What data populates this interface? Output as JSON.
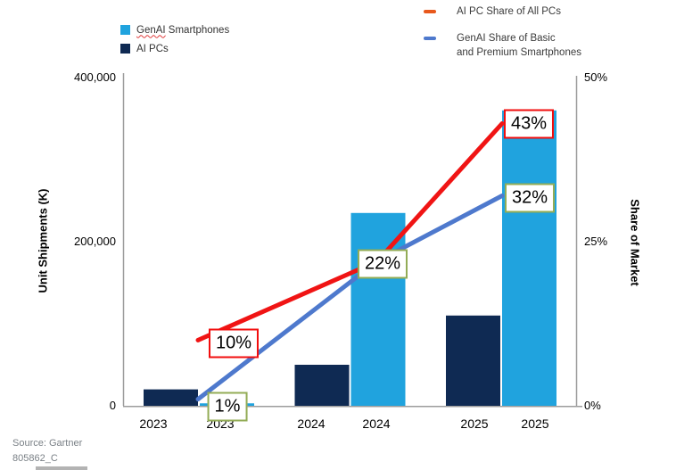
{
  "legend_left": {
    "items": [
      {
        "label": "GenAI Smartphones",
        "label_word1": "GenAI",
        "label_rest": " Smartphones",
        "color": "#20A3DE"
      },
      {
        "label": "AI PCs",
        "color": "#0F2A53"
      }
    ]
  },
  "legend_right": {
    "items": [
      {
        "label_line1": "AI PC Share of All PCs",
        "label_line2": "",
        "color": "#E8581C"
      },
      {
        "label_line1": "GenAI Share of Basic",
        "label_line2": " and Premium Smartphones",
        "color": "#4E79CD"
      }
    ]
  },
  "axes": {
    "left_title": "Unit Shipments (K)",
    "left_ticks": [
      "400,000",
      "200,000",
      "0"
    ],
    "right_title": "Share of Market",
    "right_ticks": [
      "50%",
      "25%",
      "0%"
    ],
    "x_labels": [
      "2023",
      "2023",
      "2024",
      "2024",
      "2025",
      "2025"
    ]
  },
  "footer": {
    "source": "Source: Gartner",
    "doc_id": "805862_C"
  },
  "chart_data": {
    "type": "bar+line combo, dual axis",
    "categories": [
      "2023",
      "2024",
      "2025"
    ],
    "bar_series": [
      {
        "name": "AI PCs",
        "color": "#0F2A53",
        "values": [
          20000,
          50000,
          110000
        ]
      },
      {
        "name": "GenAI Smartphones",
        "color": "#20A3DE",
        "values": [
          3000,
          235000,
          360000
        ]
      }
    ],
    "line_series": [
      {
        "name": "AI PC Share of All PCs",
        "color": "#F01414",
        "values_pct": [
          10,
          22,
          43
        ],
        "labels": [
          "10%",
          null,
          "43%"
        ],
        "label_border": "#F20D0D"
      },
      {
        "name": "GenAI Share of Basic and Premium Smartphones",
        "color": "#4E79CD",
        "values_pct": [
          1,
          22,
          32
        ],
        "labels": [
          "1%",
          "22%",
          "32%"
        ],
        "label_border": "#93AC56"
      }
    ],
    "left_axis": {
      "label": "Unit Shipments (K)",
      "min": 0,
      "max": 400000
    },
    "right_axis": {
      "label": "Share of Market",
      "min_pct": 0,
      "max_pct": 50
    },
    "title": "",
    "grid": false,
    "legend_position": "top"
  }
}
